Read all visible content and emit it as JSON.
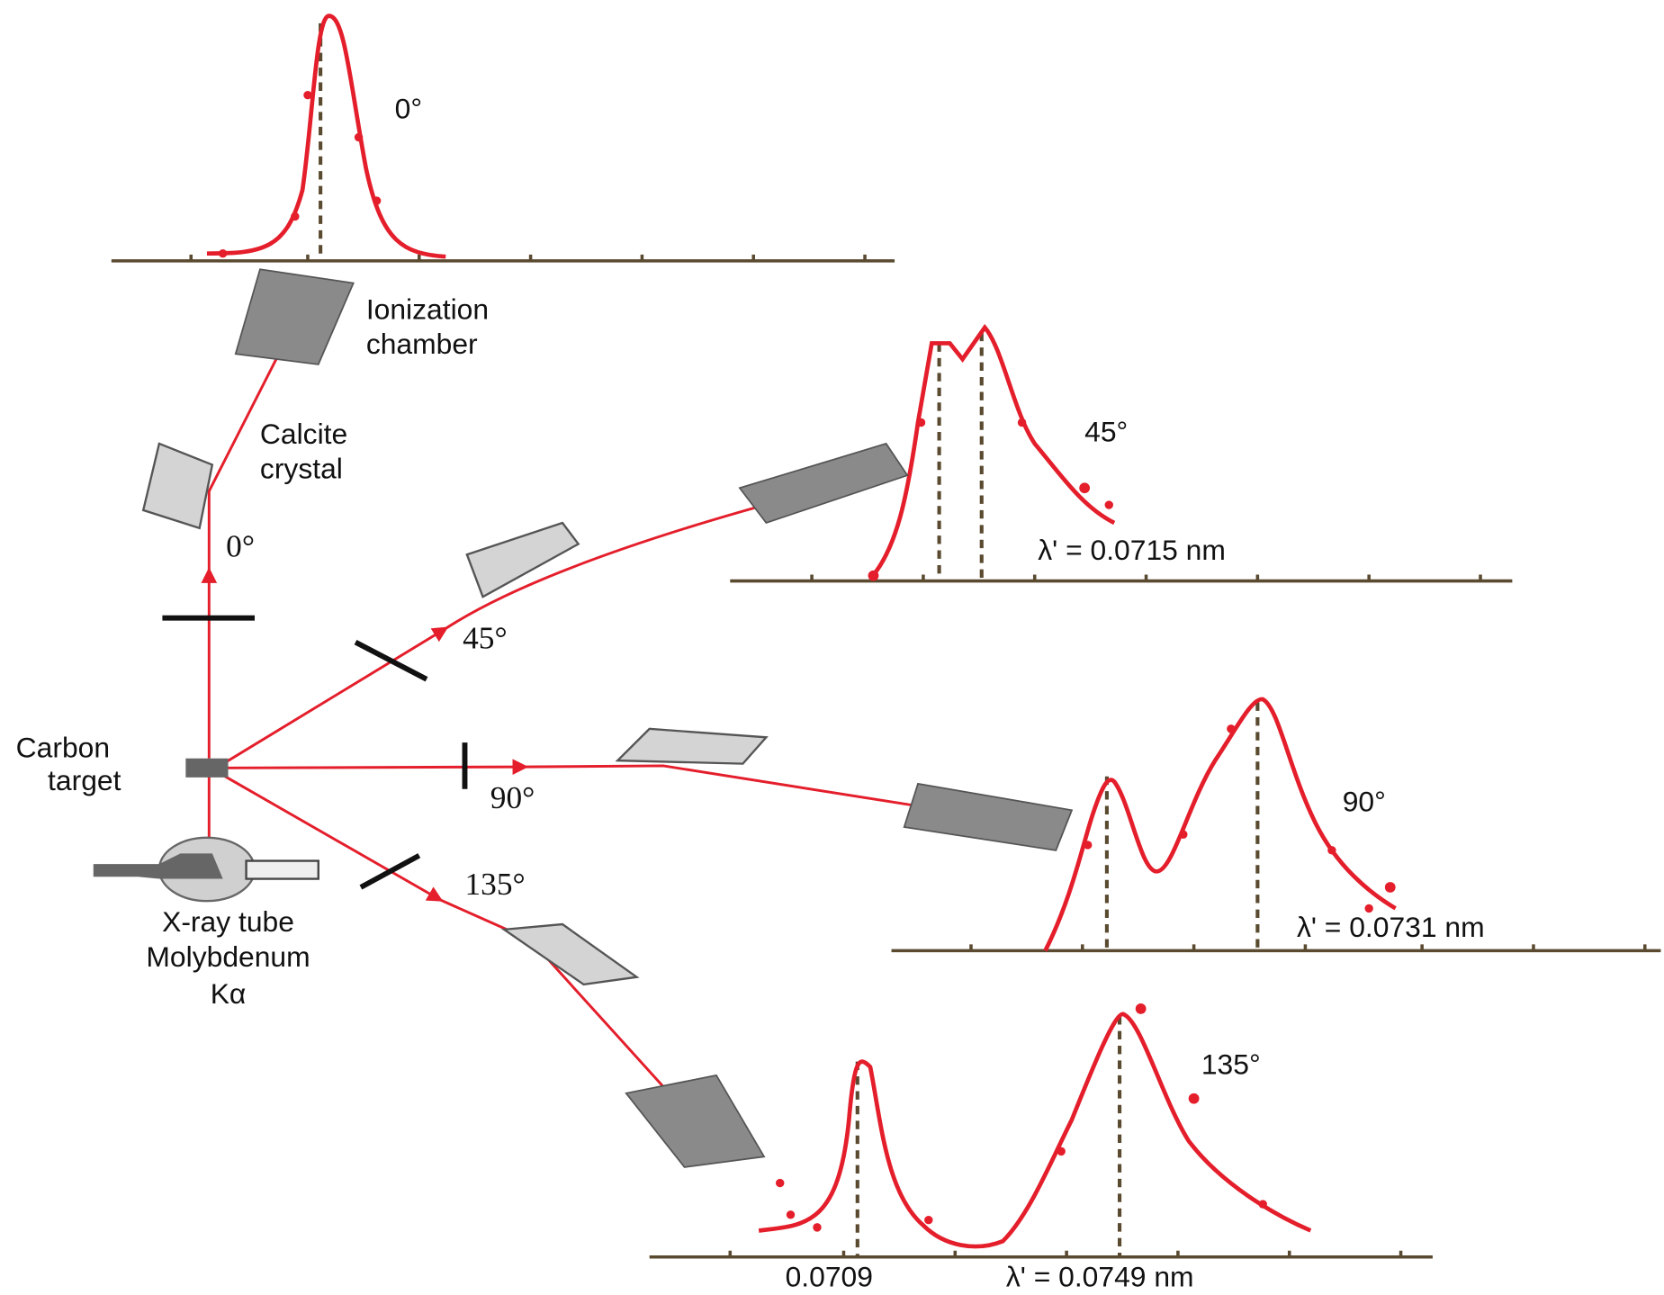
{
  "source": {
    "target": [
      "Carbon",
      "target"
    ],
    "tube": [
      "X-ray tube",
      "Molybdenum",
      "Kα"
    ]
  },
  "detector": {
    "crystal": [
      "Calcite",
      "crystal"
    ],
    "chamber": [
      "Ionization",
      "chamber"
    ]
  },
  "beam_angles": [
    "0°",
    "45°",
    "90°",
    "135°"
  ],
  "spectra": [
    {
      "angle": "0°"
    },
    {
      "angle": "45°",
      "annotation": "λ' = 0.0715 nm"
    },
    {
      "angle": "90°",
      "annotation": "λ' = 0.0731 nm"
    },
    {
      "angle": "135°",
      "annotation": "λ' = 0.0749 nm",
      "peak_label": "0.0709"
    }
  ]
}
